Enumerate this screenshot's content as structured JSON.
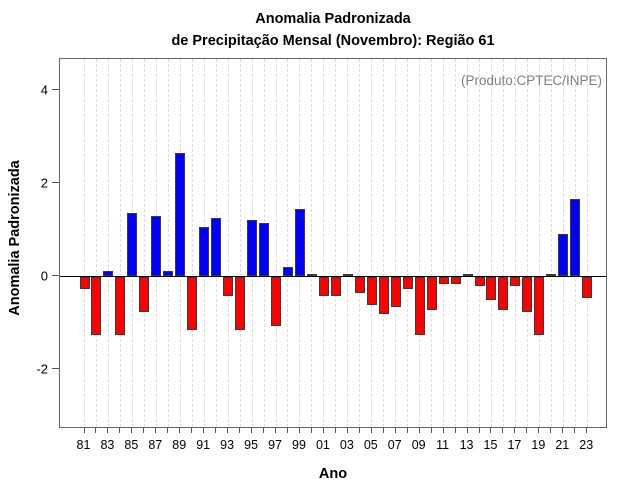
{
  "title": {
    "line1": "Anomalia Padronizada",
    "line2": "de Precipitação Mensal (Novembro): Região 61"
  },
  "annotation": "(Produto:CPTEC/INPE)",
  "chart_data": {
    "type": "bar",
    "title": "Anomalia Padronizada de Precipitação Mensal (Novembro): Região 61",
    "xlabel": "Ano",
    "ylabel": "Anomalia Padronizada",
    "categories": [
      1981,
      1982,
      1983,
      1984,
      1985,
      1986,
      1987,
      1988,
      1989,
      1990,
      1991,
      1992,
      1993,
      1994,
      1995,
      1996,
      1997,
      1998,
      1999,
      2000,
      2001,
      2002,
      2003,
      2004,
      2005,
      2006,
      2007,
      2008,
      2009,
      2010,
      2011,
      2012,
      2013,
      2014,
      2015,
      2016,
      2017,
      2018,
      2019,
      2020,
      2021,
      2022,
      2023
    ],
    "values": [
      -0.25,
      -1.25,
      0.1,
      -1.25,
      1.35,
      -0.75,
      1.3,
      0.1,
      2.65,
      -1.15,
      1.05,
      1.25,
      -0.4,
      -1.15,
      1.2,
      1.15,
      -1.05,
      0.2,
      1.45,
      0.05,
      -0.4,
      -0.4,
      0.05,
      -0.35,
      -0.6,
      -0.8,
      -0.65,
      -0.25,
      -1.25,
      -0.7,
      -0.15,
      -0.15,
      0.05,
      -0.2,
      -0.5,
      -0.7,
      -0.2,
      -0.75,
      -1.25,
      0.05,
      0.9,
      1.65,
      -0.45
    ],
    "x_tick_labels": [
      "81",
      "83",
      "85",
      "87",
      "89",
      "91",
      "93",
      "95",
      "97",
      "99",
      "01",
      "03",
      "05",
      "07",
      "09",
      "11",
      "13",
      "15",
      "17",
      "19",
      "21",
      "23"
    ],
    "y_ticks": [
      4,
      2,
      0,
      -2
    ],
    "ylim": [
      -3.3,
      4.65
    ],
    "grid": {
      "vertical_dashed": true,
      "interval": "every-year"
    },
    "legend": "none",
    "annotation": "(Produto:CPTEC/INPE)",
    "colors": {
      "positive": "#0000ff",
      "negative": "#ff0000",
      "bar_border": "#3a3a3a",
      "annotation_text": "#808080",
      "gridline": "#dcdcdc",
      "zero_line": "#000000"
    }
  }
}
